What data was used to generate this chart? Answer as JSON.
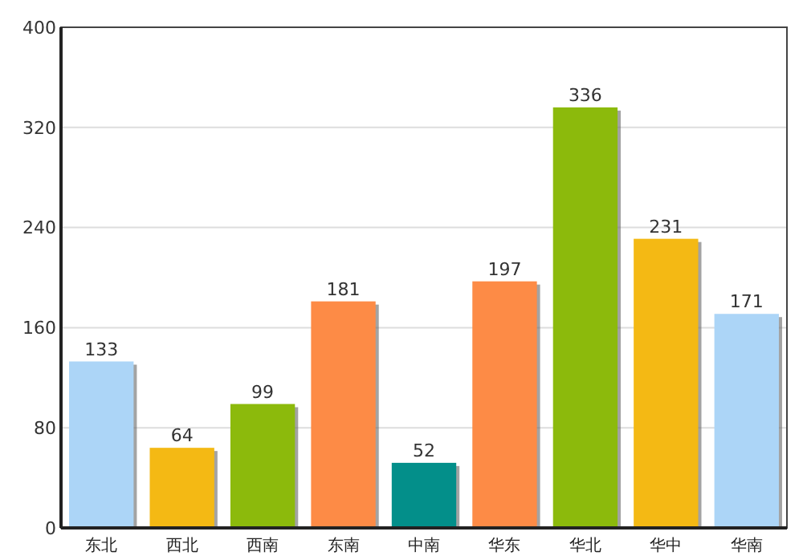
{
  "chart_data": {
    "type": "bar",
    "categories": [
      "东北",
      "西北",
      "西南",
      "东南",
      "中南",
      "华东",
      "华北",
      "华中",
      "华南"
    ],
    "values": [
      133,
      64,
      99,
      181,
      52,
      197,
      336,
      231,
      171
    ],
    "colors": [
      "#acd5f7",
      "#f4b914",
      "#8cba0c",
      "#fd8b46",
      "#038f8a",
      "#fd8b46",
      "#8cba0c",
      "#f4b914",
      "#acd5f7"
    ],
    "ylim": [
      0,
      400
    ],
    "yticks": [
      0,
      80,
      160,
      240,
      320,
      400
    ],
    "grid": "y",
    "data_labels": true
  }
}
